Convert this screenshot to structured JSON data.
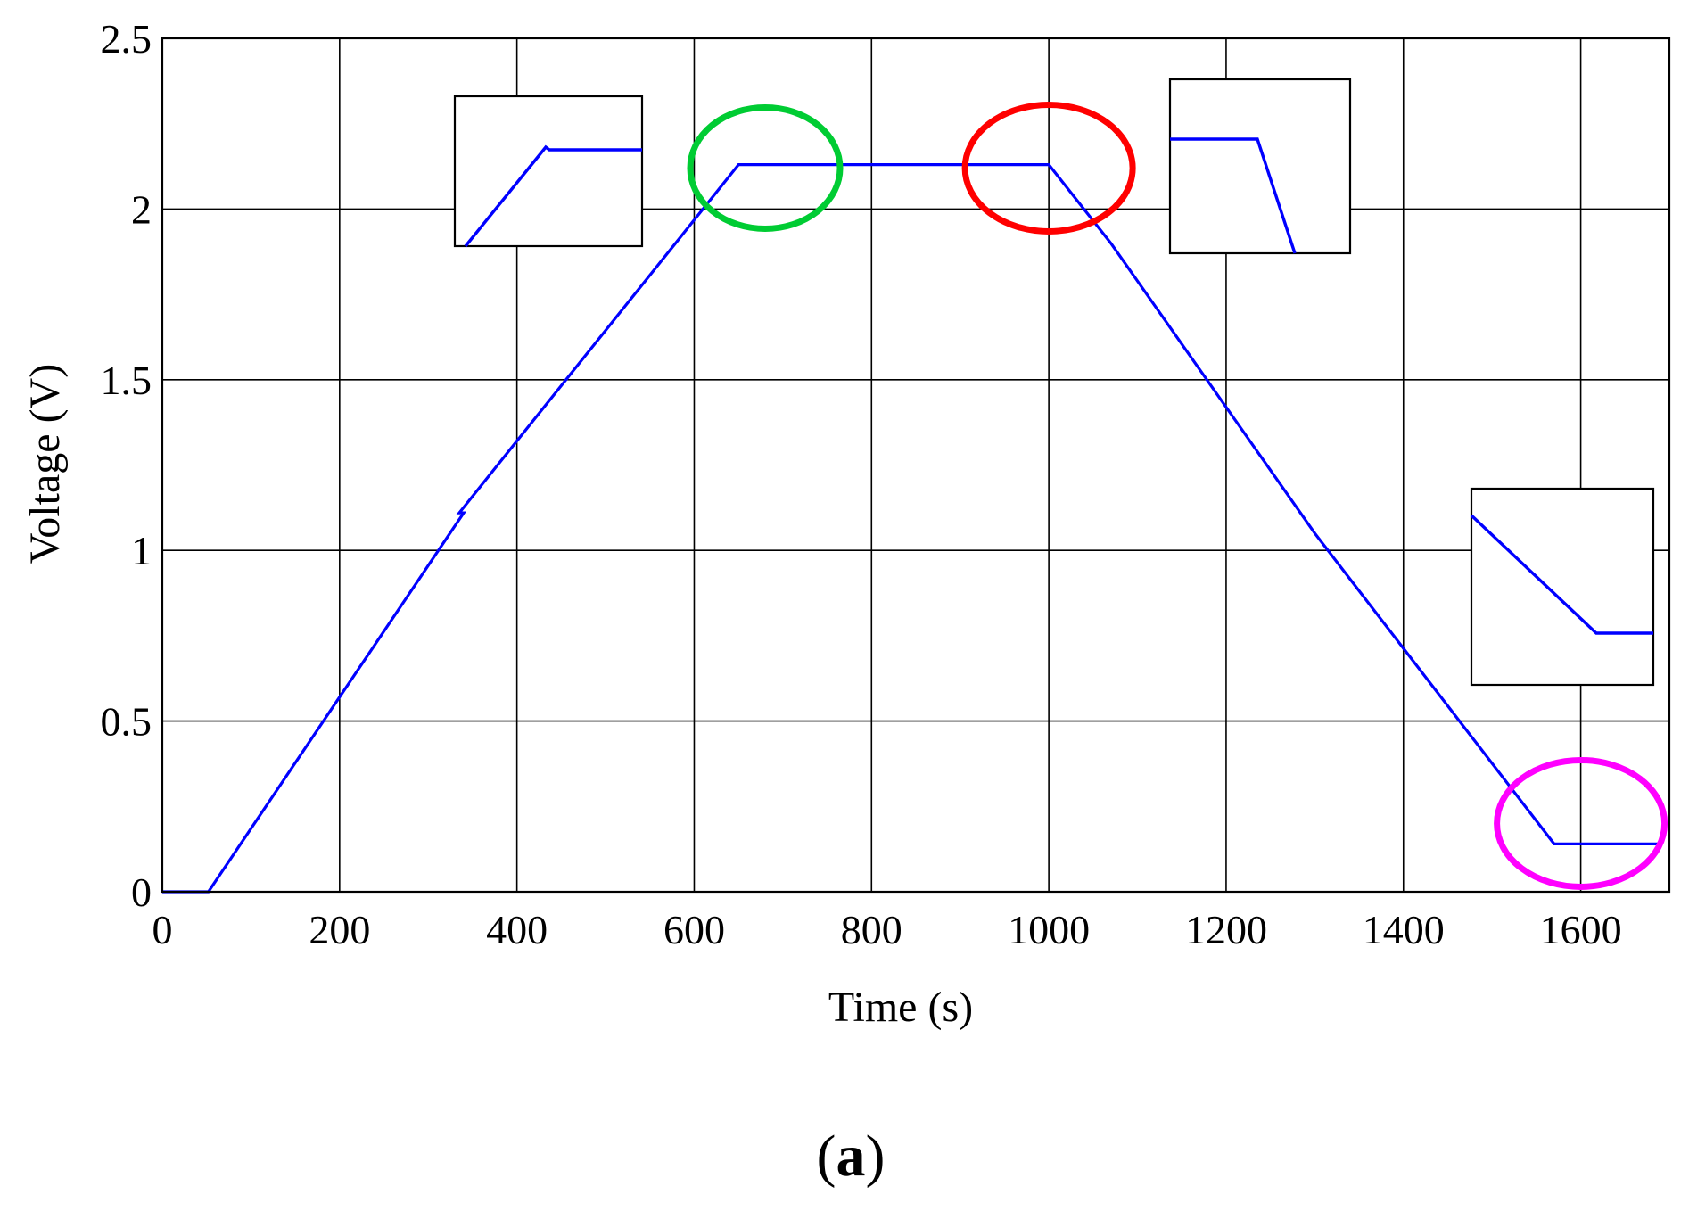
{
  "figure_label": {
    "open": "(",
    "letter": "a",
    "close": ")"
  },
  "colors": {
    "series": "#0000ff",
    "highlight_green": "#00cc33",
    "highlight_red": "#ff0000",
    "highlight_magenta": "#ff00ff",
    "grid": "#000000"
  },
  "chart_data": {
    "type": "line",
    "xlabel": "Time (s)",
    "ylabel": "Voltage (V)",
    "xlim": [
      0,
      1700
    ],
    "ylim": [
      0,
      2.5
    ],
    "xticks": [
      0,
      200,
      400,
      600,
      800,
      1000,
      1200,
      1400,
      1600
    ],
    "yticks": [
      0,
      0.5,
      1,
      1.5,
      2,
      2.5
    ],
    "ytick_labels": [
      "0",
      "0.5",
      "1",
      "1.5",
      "2",
      "2.5"
    ],
    "grid": true,
    "series": [
      {
        "points": [
          [
            0,
            0
          ],
          [
            52,
            0
          ],
          [
            340,
            1.11
          ],
          [
            335,
            1.11
          ],
          [
            650,
            2.13
          ],
          [
            1000,
            2.13
          ],
          [
            1070,
            1.9
          ],
          [
            1300,
            1.05
          ],
          [
            1570,
            0.14
          ],
          [
            1690,
            0.14
          ]
        ]
      }
    ],
    "annotations": [
      {
        "shape": "ellipse",
        "color": "green",
        "center": [
          680,
          2.12
        ]
      },
      {
        "shape": "ellipse",
        "color": "red",
        "center": [
          1000,
          2.12
        ]
      },
      {
        "shape": "ellipse",
        "color": "magenta",
        "center": [
          1600,
          0.2
        ]
      }
    ],
    "insets": [
      {
        "location": "left-top",
        "content": "zoom of ramp-up to plateau transition"
      },
      {
        "location": "right-top",
        "content": "zoom of plateau to ramp-down transition"
      },
      {
        "location": "right-bottom",
        "content": "zoom of ramp-down to final level transition"
      }
    ]
  }
}
